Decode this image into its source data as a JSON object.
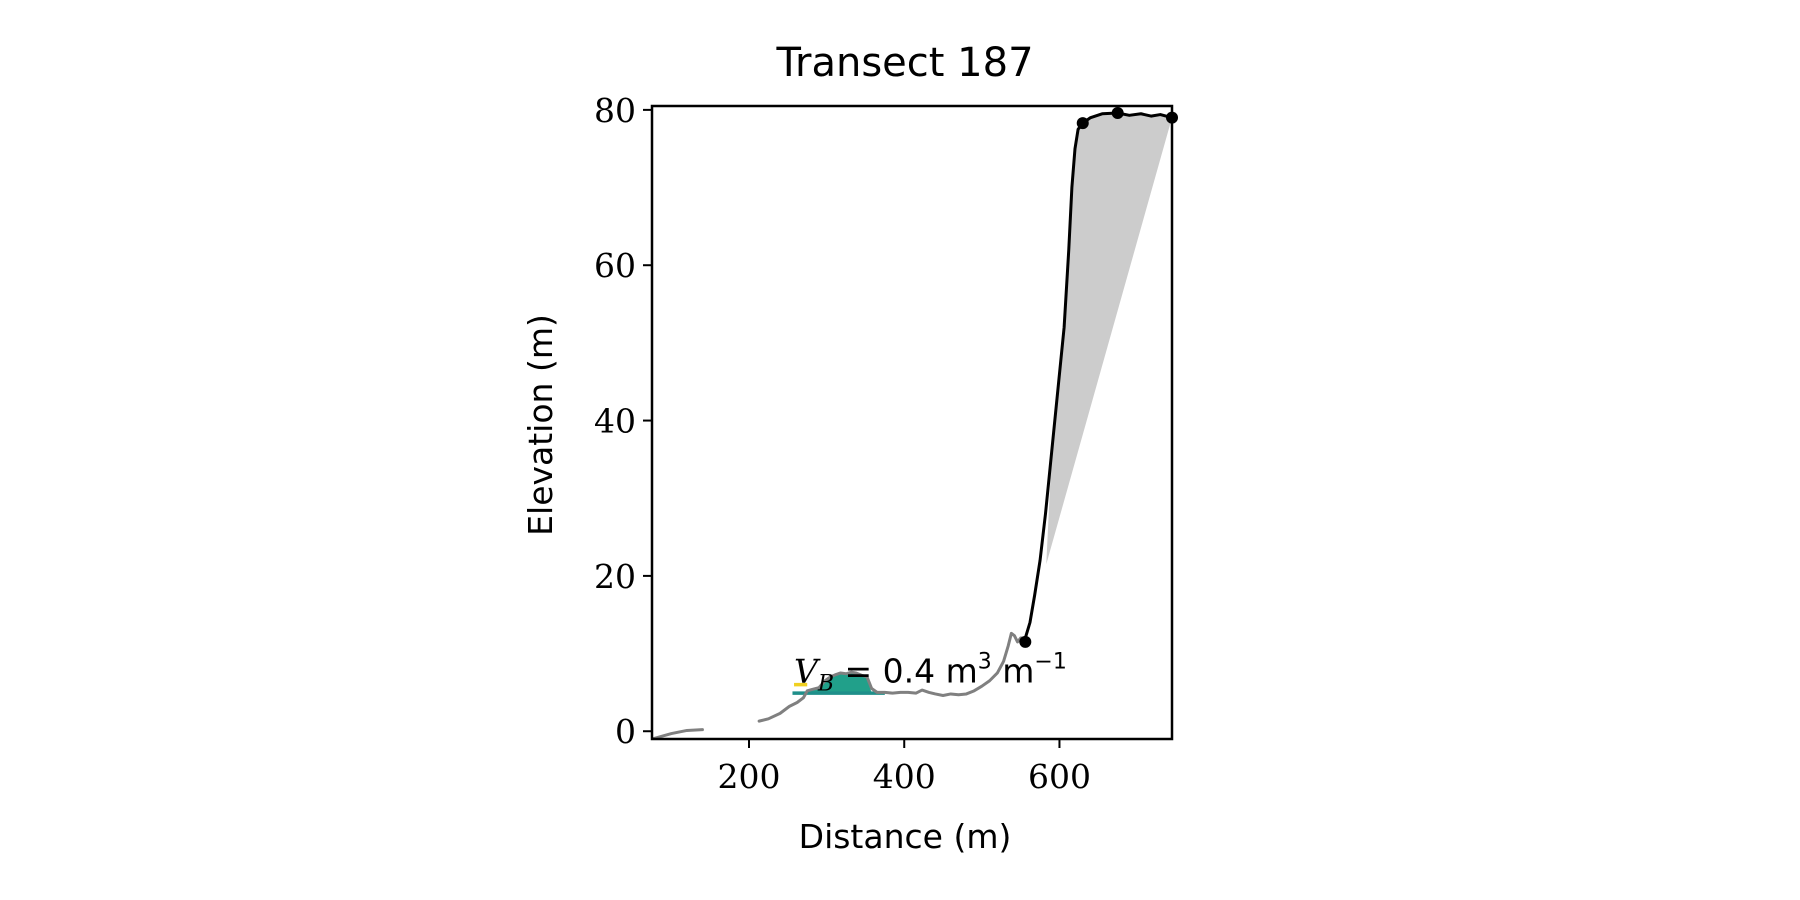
{
  "chart_data": {
    "type": "line",
    "title": "Transect 187",
    "xlabel": "Distance (m)",
    "ylabel": "Elevation (m)",
    "xlim": [
      75,
      745
    ],
    "ylim": [
      -1,
      80.5
    ],
    "xticks": [
      200,
      400,
      600
    ],
    "yticks": [
      0,
      20,
      40,
      60,
      80
    ],
    "grid": false,
    "annotation": {
      "symbol": "V",
      "subscript": "B",
      "text": "= 0.4 m",
      "unit_sup": "3",
      "unit2": " m",
      "unit2_sup": "−1"
    },
    "series": [
      {
        "style": "gray-profile",
        "color": "#808080",
        "segments": [
          {
            "x": [
              75,
              100,
              120,
              140
            ],
            "y": [
              -1,
              -0.3,
              0.1,
              0.2
            ]
          },
          {
            "x": [
              213,
              225,
              240,
              252,
              262,
              270,
              275,
              282,
              290,
              298,
              305,
              312,
              318,
              325,
              332,
              338,
              345,
              352,
              358,
              365,
              375,
              385,
              395,
              405,
              415,
              423,
              432,
              440,
              450,
              460,
              470,
              480,
              490,
              500,
              510,
              520,
              528,
              534,
              538,
              542,
              546,
              550,
              556
            ],
            "y": [
              1.3,
              1.6,
              2.3,
              3.2,
              3.7,
              4.3,
              5.2,
              5.4,
              5.6,
              6.5,
              7.0,
              7.3,
              7.5,
              7.4,
              7.6,
              7.5,
              7.2,
              7.0,
              5.5,
              5.0,
              5.0,
              4.9,
              5.0,
              5.0,
              4.9,
              5.3,
              5.0,
              4.8,
              4.6,
              4.8,
              4.7,
              4.8,
              5.2,
              5.8,
              6.5,
              7.5,
              9.0,
              11.0,
              12.6,
              12.3,
              11.5,
              12.0,
              12.0
            ]
          }
        ]
      },
      {
        "style": "black-profile",
        "color": "#000000",
        "segments": [
          {
            "x": [
              556,
              562,
              568,
              575,
              582,
              590,
              598,
              606,
              612,
              616,
              620,
              624,
              630,
              640,
              655,
              675,
              690,
              705,
              718,
              730,
              745
            ],
            "y": [
              12.0,
              14.0,
              17.5,
              22.0,
              28.0,
              36.0,
              44.0,
              52.0,
              62.0,
              70.0,
              75.0,
              77.5,
              78.3,
              79.0,
              79.5,
              79.6,
              79.3,
              79.5,
              79.2,
              79.4,
              79.0
            ]
          }
        ]
      }
    ],
    "shaded_region": {
      "color": "#cccccc",
      "upper": {
        "x": [
          583,
          590,
          598,
          606,
          612,
          616,
          620,
          624,
          630,
          640,
          655,
          675,
          690,
          705,
          718,
          730,
          745
        ],
        "y": [
          21.5,
          36.0,
          44.0,
          52.0,
          62.0,
          70.0,
          75.0,
          77.5,
          78.3,
          79.0,
          79.5,
          79.6,
          79.3,
          79.5,
          79.2,
          79.4,
          79.0
        ]
      },
      "lower_line": {
        "x": [
          583,
          745
        ],
        "y": [
          21.5,
          79.0
        ]
      }
    },
    "filled_dune": {
      "color": "#21a08a",
      "base": 4.9,
      "x": [
        262,
        270,
        275,
        282,
        290,
        298,
        305,
        312,
        318,
        325,
        332,
        338,
        345,
        352,
        358
      ],
      "y": [
        4.9,
        4.9,
        5.2,
        5.4,
        5.6,
        6.5,
        7.0,
        7.3,
        7.5,
        7.4,
        7.6,
        7.5,
        7.2,
        7.0,
        4.9
      ]
    },
    "baselines": [
      {
        "color": "#f0d020",
        "x": [
          258,
          275
        ],
        "y": [
          6.0,
          6.0
        ]
      },
      {
        "color": "#1f8f8a",
        "x": [
          256,
          375
        ],
        "y": [
          4.9,
          4.9
        ]
      }
    ],
    "markers": {
      "color": "#000000",
      "x": [
        556,
        630,
        675,
        745
      ],
      "y": [
        11.5,
        78.3,
        79.6,
        79.0
      ]
    }
  }
}
